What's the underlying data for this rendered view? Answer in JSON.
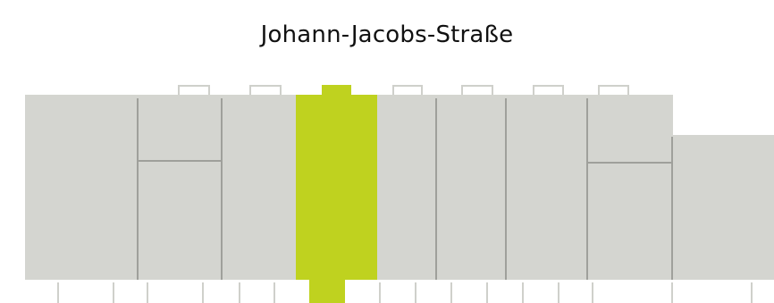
{
  "street": {
    "name": "Johann-Jacobs-Straße"
  },
  "colors": {
    "building": "#d4d5d0",
    "partition": "#9fa09b",
    "highlight": "#bfd21f",
    "background": "#ffffff"
  },
  "plan": {
    "highlighted_unit": 4,
    "unit_count": 9
  }
}
